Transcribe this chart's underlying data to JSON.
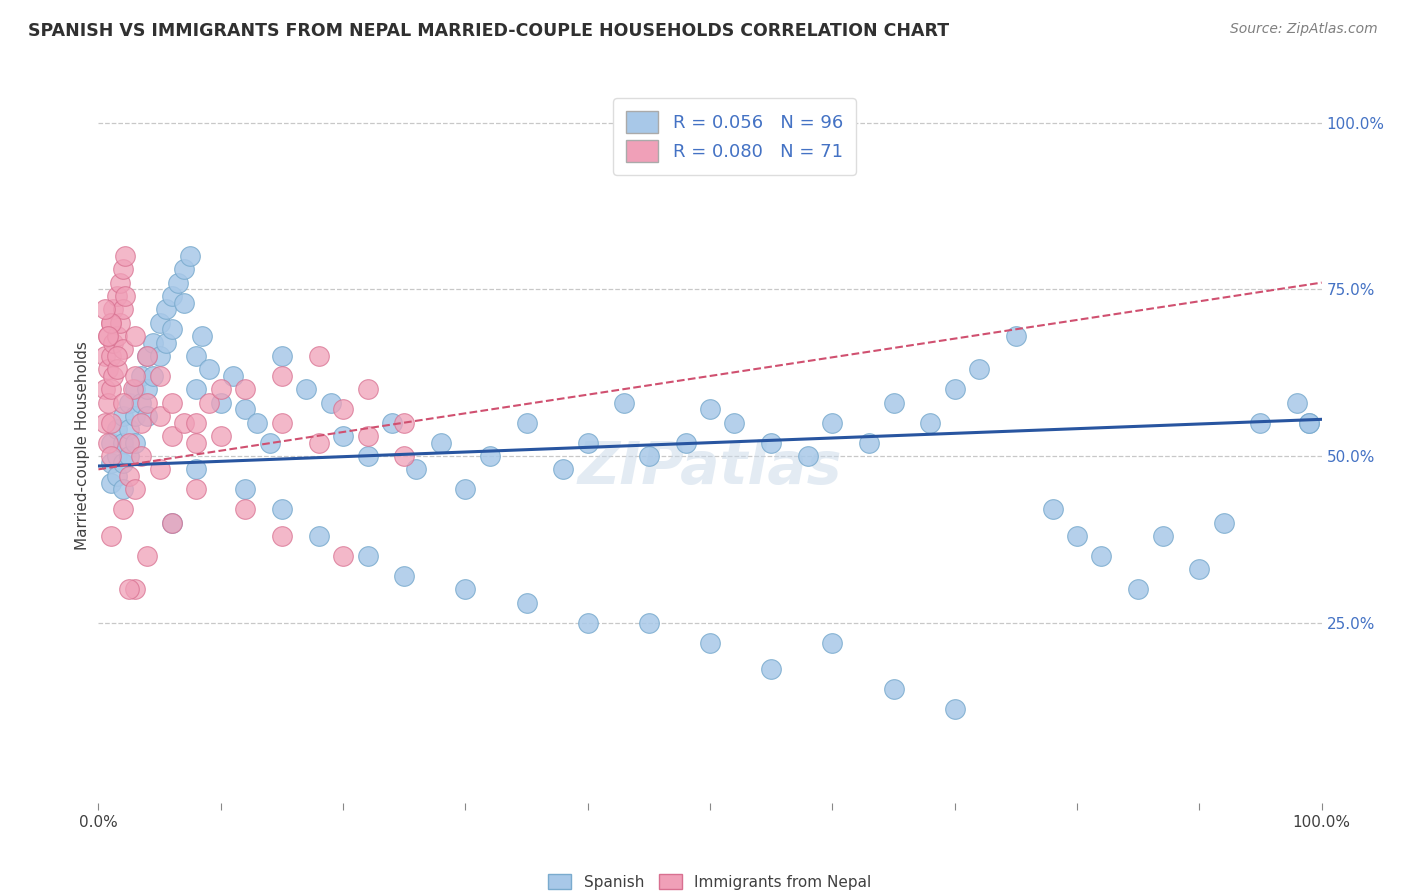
{
  "title": "SPANISH VS IMMIGRANTS FROM NEPAL MARRIED-COUPLE HOUSEHOLDS CORRELATION CHART",
  "source": "Source: ZipAtlas.com",
  "ylabel": "Married-couple Households",
  "y_tick_labels_right": [
    "100.0%",
    "75.0%",
    "50.0%",
    "25.0%"
  ],
  "y_tick_values": [
    1.0,
    0.75,
    0.5,
    0.25
  ],
  "R_spanish": 0.056,
  "N_spanish": 96,
  "R_nepal": 0.08,
  "N_nepal": 71,
  "spanish_color": "#a8c8e8",
  "nepal_color": "#f0a0b8",
  "spanish_edge_color": "#7aabce",
  "nepal_edge_color": "#d87090",
  "spanish_line_color": "#2855a0",
  "nepal_line_color": "#d05070",
  "background_color": "#ffffff",
  "grid_color": "#c8c8c8",
  "title_color": "#303030",
  "source_color": "#808080",
  "legend_color_text": "#4472c4",
  "spanish_x": [
    0.01,
    0.01,
    0.01,
    0.015,
    0.015,
    0.015,
    0.02,
    0.02,
    0.02,
    0.02,
    0.025,
    0.025,
    0.025,
    0.03,
    0.03,
    0.03,
    0.035,
    0.035,
    0.04,
    0.04,
    0.04,
    0.045,
    0.045,
    0.05,
    0.05,
    0.055,
    0.055,
    0.06,
    0.06,
    0.065,
    0.07,
    0.07,
    0.075,
    0.08,
    0.08,
    0.085,
    0.09,
    0.1,
    0.11,
    0.12,
    0.13,
    0.14,
    0.15,
    0.17,
    0.19,
    0.2,
    0.22,
    0.24,
    0.26,
    0.28,
    0.3,
    0.32,
    0.35,
    0.38,
    0.4,
    0.43,
    0.45,
    0.48,
    0.5,
    0.52,
    0.55,
    0.58,
    0.6,
    0.63,
    0.65,
    0.68,
    0.7,
    0.72,
    0.75,
    0.78,
    0.8,
    0.82,
    0.85,
    0.87,
    0.9,
    0.92,
    0.95,
    0.98,
    0.99,
    0.3,
    0.35,
    0.4,
    0.45,
    0.5,
    0.55,
    0.6,
    0.65,
    0.7,
    0.12,
    0.15,
    0.18,
    0.22,
    0.25,
    0.08,
    0.06,
    0.99
  ],
  "spanish_y": [
    0.52,
    0.49,
    0.46,
    0.54,
    0.5,
    0.47,
    0.56,
    0.52,
    0.49,
    0.45,
    0.58,
    0.54,
    0.5,
    0.6,
    0.56,
    0.52,
    0.62,
    0.58,
    0.65,
    0.6,
    0.56,
    0.67,
    0.62,
    0.7,
    0.65,
    0.72,
    0.67,
    0.74,
    0.69,
    0.76,
    0.78,
    0.73,
    0.8,
    0.65,
    0.6,
    0.68,
    0.63,
    0.58,
    0.62,
    0.57,
    0.55,
    0.52,
    0.65,
    0.6,
    0.58,
    0.53,
    0.5,
    0.55,
    0.48,
    0.52,
    0.45,
    0.5,
    0.55,
    0.48,
    0.52,
    0.58,
    0.5,
    0.52,
    0.57,
    0.55,
    0.52,
    0.5,
    0.55,
    0.52,
    0.58,
    0.55,
    0.6,
    0.63,
    0.68,
    0.42,
    0.38,
    0.35,
    0.3,
    0.38,
    0.33,
    0.4,
    0.55,
    0.58,
    0.55,
    0.3,
    0.28,
    0.25,
    0.25,
    0.22,
    0.18,
    0.22,
    0.15,
    0.12,
    0.45,
    0.42,
    0.38,
    0.35,
    0.32,
    0.48,
    0.4,
    0.55
  ],
  "nepal_x": [
    0.005,
    0.005,
    0.005,
    0.008,
    0.008,
    0.008,
    0.008,
    0.01,
    0.01,
    0.01,
    0.01,
    0.01,
    0.012,
    0.012,
    0.012,
    0.015,
    0.015,
    0.015,
    0.018,
    0.018,
    0.02,
    0.02,
    0.02,
    0.022,
    0.022,
    0.025,
    0.025,
    0.028,
    0.03,
    0.03,
    0.035,
    0.035,
    0.04,
    0.04,
    0.05,
    0.05,
    0.06,
    0.06,
    0.07,
    0.08,
    0.09,
    0.1,
    0.12,
    0.15,
    0.18,
    0.2,
    0.22,
    0.25,
    0.12,
    0.15,
    0.08,
    0.06,
    0.04,
    0.03,
    0.025,
    0.02,
    0.015,
    0.01,
    0.008,
    0.005,
    0.18,
    0.15,
    0.1,
    0.08,
    0.05,
    0.03,
    0.02,
    0.01,
    0.22,
    0.25,
    0.2
  ],
  "nepal_y": [
    0.65,
    0.6,
    0.55,
    0.68,
    0.63,
    0.58,
    0.52,
    0.7,
    0.65,
    0.6,
    0.55,
    0.5,
    0.72,
    0.67,
    0.62,
    0.74,
    0.68,
    0.63,
    0.76,
    0.7,
    0.78,
    0.72,
    0.66,
    0.8,
    0.74,
    0.52,
    0.47,
    0.6,
    0.68,
    0.62,
    0.55,
    0.5,
    0.65,
    0.58,
    0.62,
    0.56,
    0.58,
    0.53,
    0.55,
    0.52,
    0.58,
    0.53,
    0.6,
    0.55,
    0.52,
    0.57,
    0.53,
    0.5,
    0.42,
    0.38,
    0.45,
    0.4,
    0.35,
    0.3,
    0.3,
    0.58,
    0.65,
    0.7,
    0.68,
    0.72,
    0.65,
    0.62,
    0.6,
    0.55,
    0.48,
    0.45,
    0.42,
    0.38,
    0.6,
    0.55,
    0.35
  ]
}
